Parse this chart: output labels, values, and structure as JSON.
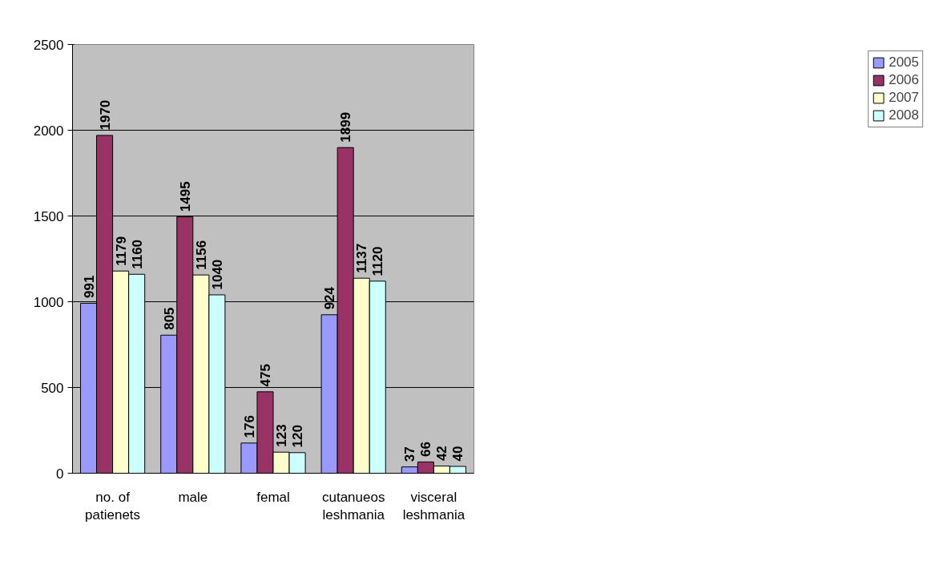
{
  "chart_data": {
    "type": "bar",
    "categories": [
      "no. of patienets",
      "male",
      "femal",
      "cutanueos leshmania",
      "visceral leshmania"
    ],
    "series": [
      {
        "name": "2005",
        "color": "#9999ff",
        "values": [
          991,
          805,
          176,
          924,
          37
        ]
      },
      {
        "name": "2006",
        "color": "#993366",
        "values": [
          1970,
          1495,
          475,
          1899,
          66
        ]
      },
      {
        "name": "2007",
        "color": "#ffffcc",
        "values": [
          1179,
          1156,
          123,
          1137,
          42
        ]
      },
      {
        "name": "2008",
        "color": "#ccffff",
        "values": [
          1160,
          1040,
          120,
          1120,
          40
        ]
      }
    ],
    "ylim": [
      0,
      2500
    ],
    "yticks": [
      0,
      500,
      1000,
      1500,
      2000,
      2500
    ],
    "grid": "y",
    "legend": "right",
    "data_labels": true
  }
}
